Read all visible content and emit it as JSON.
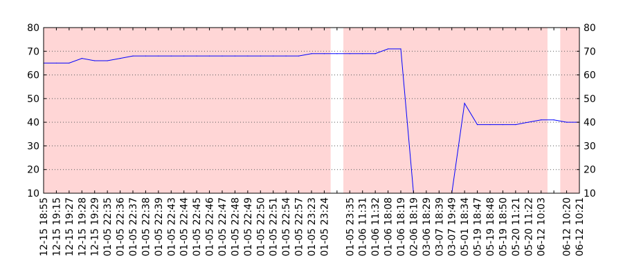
{
  "chart_data": {
    "type": "line",
    "title": "",
    "xlabel": "",
    "ylabel": "",
    "ylim": [
      10,
      80
    ],
    "yticks": [
      10,
      20,
      30,
      40,
      50,
      60,
      70,
      80
    ],
    "grid": "horizontal dotted",
    "right_axis": true,
    "categories": [
      "12-15 18:55",
      "12-15 19:15",
      "12-15 19:27",
      "12-15 19:28",
      "12-15 19:29",
      "01-05 22:35",
      "01-05 22:36",
      "01-05 22:37",
      "01-05 22:38",
      "01-05 22:39",
      "01-05 22:43",
      "01-05 22:44",
      "01-05 22:45",
      "01-05 22:46",
      "01-05 22:47",
      "01-05 22:48",
      "01-05 22:49",
      "01-05 22:50",
      "01-05 22:51",
      "01-05 22:54",
      "01-05 22:57",
      "01-05 23:23",
      "01-05 23:24",
      "",
      "01-05 23:35",
      "01-06 11:31",
      "01-06 11:32",
      "01-06 18:08",
      "01-06 18:19",
      "02-06 18:19",
      "03-06 18:29",
      "03-07 18:39",
      "03-07 19:49",
      "05-01 18:34",
      "05-19 18:47",
      "05-19 18:48",
      "05-19 18:50",
      "05-20 11:21",
      "05-20 11:22",
      "06-12 10:03",
      "",
      "06-12 10:20",
      "06-12 10:21"
    ],
    "series": [
      {
        "color": "#0000ff",
        "values": [
          65,
          65,
          65,
          67,
          66,
          66,
          67,
          68,
          68,
          68,
          68,
          68,
          68,
          68,
          68,
          68,
          68,
          68,
          68,
          68,
          68,
          69,
          69,
          69,
          69,
          69,
          69,
          71,
          71,
          10,
          10,
          10,
          10,
          48,
          39,
          39,
          39,
          39,
          40,
          41,
          41,
          40,
          40
        ]
      }
    ],
    "shaded_spans": [
      [
        0,
        22
      ],
      [
        24,
        39
      ],
      [
        41,
        42
      ]
    ],
    "colors": {
      "shade": "#ffd6d6",
      "line": "#0000ff",
      "grid": "#555555"
    }
  }
}
